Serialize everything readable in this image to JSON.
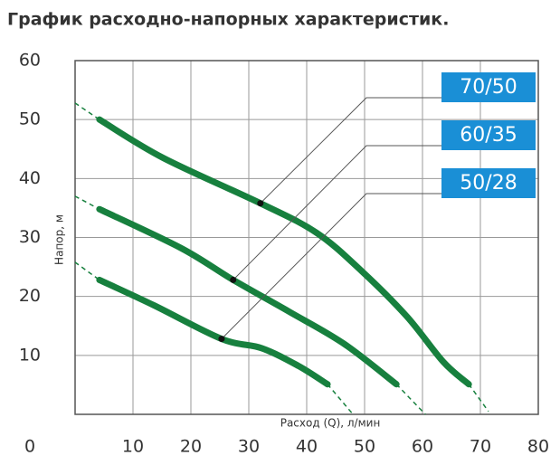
{
  "chart_data": {
    "type": "line",
    "title": "График расходно-напорных характеристик.",
    "xlabel": "Расход (Q), л/мин",
    "ylabel": "Напор, м",
    "xlim": [
      0,
      80
    ],
    "ylim": [
      0,
      60
    ],
    "xticks": [
      0,
      10,
      20,
      30,
      40,
      50,
      60,
      70,
      80
    ],
    "yticks": [
      0,
      10,
      20,
      30,
      40,
      50,
      60
    ],
    "grid": true,
    "series": [
      {
        "name": "70/50",
        "color": "#17803e",
        "x": [
          4.2,
          15.2,
          32,
          41.7,
          49.5,
          57.3,
          63.6,
          68
        ],
        "values": [
          50,
          43.5,
          35.8,
          30.8,
          24.3,
          16.6,
          8.9,
          5.1
        ],
        "marker": [
          32,
          35.8
        ]
      },
      {
        "name": "60/35",
        "color": "#17803e",
        "x": [
          4.2,
          18.3,
          27.3,
          37,
          46.4,
          55.5
        ],
        "values": [
          34.8,
          28.2,
          22.8,
          17.4,
          12,
          5.1
        ],
        "marker": [
          27.3,
          22.8
        ]
      },
      {
        "name": "50/28",
        "color": "#17803e",
        "x": [
          4.2,
          13.6,
          25.3,
          32.3,
          38.6,
          43.6
        ],
        "values": [
          22.8,
          18.5,
          12.8,
          11.2,
          8.2,
          5.1
        ],
        "marker": [
          25.3,
          12.8
        ]
      }
    ],
    "dashed_lines": [
      {
        "color": "#17803e",
        "x": [
          0,
          4.2
        ],
        "values": [
          52.8,
          50
        ]
      },
      {
        "color": "#17803e",
        "x": [
          68,
          71.4
        ],
        "values": [
          5.1,
          0.5
        ]
      },
      {
        "color": "#17803e",
        "x": [
          0,
          4.2
        ],
        "values": [
          37,
          34.8
        ]
      },
      {
        "color": "#17803e",
        "x": [
          55.5,
          60.5
        ],
        "values": [
          5.1,
          0
        ]
      },
      {
        "color": "#17803e",
        "x": [
          0,
          4.2
        ],
        "values": [
          25.8,
          22.8
        ]
      },
      {
        "color": "#17803e",
        "x": [
          43.6,
          48
        ],
        "values": [
          5.1,
          0
        ]
      }
    ],
    "label_color": "#1a8fd6"
  }
}
